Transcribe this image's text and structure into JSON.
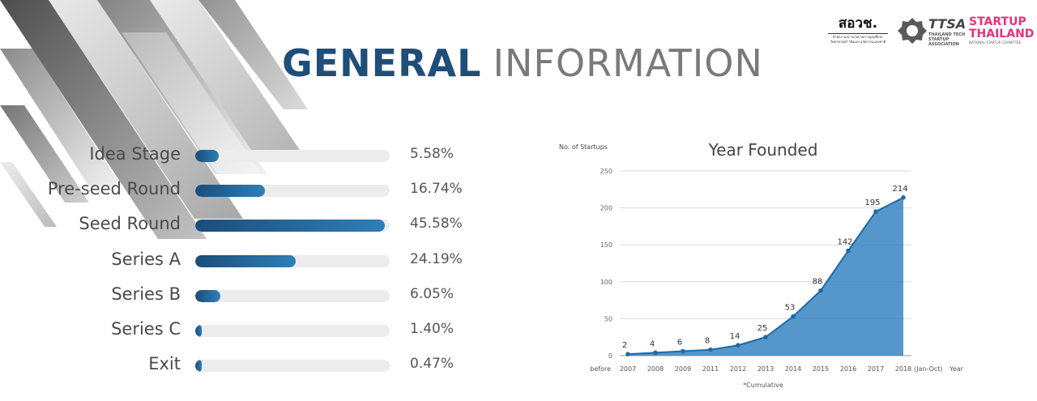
{
  "page": {
    "title_bold": "GENERAL",
    "title_light": "INFORMATION"
  },
  "logos": {
    "ohsrd_title": "สอวช.",
    "ohsrd_sub_1": "สำนักงานสภานโยบายการอุดมศึกษา",
    "ohsrd_sub_2": "วิทยาศาสตร์ วิจัยและนวัตกรรมแห่งชาติ",
    "ttsa_name": "TTSA",
    "ttsa_sub_1": "THAILAND TECH",
    "ttsa_sub_2": "STARTUP ASSOCIATION",
    "startup_line1": "STARTUP",
    "startup_line2": "THAILAND",
    "startup_sub": "NATIONAL STARTUP COMMITTEE",
    "colors": {
      "navy": "#1f4e79",
      "pink": "#e0357a",
      "grey": "#7a7a7a"
    }
  },
  "funding_stages": [
    {
      "label": "Idea Stage",
      "percent_text": "5.58%",
      "value": 5.58
    },
    {
      "label": "Pre-seed Round",
      "percent_text": "16.74%",
      "value": 16.74
    },
    {
      "label": "Seed Round",
      "percent_text": "45.58%",
      "value": 45.58
    },
    {
      "label": "Series A",
      "percent_text": "24.19%",
      "value": 24.19
    },
    {
      "label": "Series B",
      "percent_text": "6.05%",
      "value": 6.05
    },
    {
      "label": "Series C",
      "percent_text": "1.40%",
      "value": 1.4
    },
    {
      "label": "Exit",
      "percent_text": "0.47%",
      "value": 0.47
    }
  ],
  "chart_data": {
    "type": "area",
    "title": "Year Founded",
    "ylabel": "No. of Startups",
    "xlabel": "Year",
    "categories": [
      "before 2007",
      "2008",
      "2009",
      "2011",
      "2012",
      "2013",
      "2014",
      "2015",
      "2016",
      "2017",
      "2018 (Jan-Oct)"
    ],
    "tick_labels": [
      "2007",
      "2008",
      "2009",
      "2011",
      "2012",
      "2013",
      "2014",
      "2015",
      "2016",
      "2017",
      "2018"
    ],
    "x_prefix": "before",
    "x_suffix": "(Jan-Oct)",
    "x_unit": "Year",
    "values": [
      2,
      4,
      6,
      8,
      14,
      25,
      53,
      88,
      142,
      195,
      214
    ],
    "ylim": [
      0,
      250
    ],
    "yticks": [
      0,
      50,
      100,
      150,
      200,
      250
    ],
    "grid": true,
    "color": "#2f7fbf",
    "footnote": "*Cumulative"
  }
}
